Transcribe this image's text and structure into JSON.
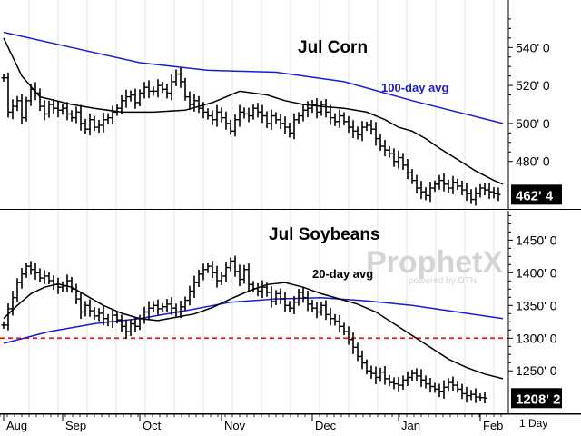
{
  "chart_data": [
    {
      "type": "line",
      "subtype": "ohlc-bar",
      "title": "Jul Corn",
      "ylim": [
        455,
        565
      ],
      "y_ticks": [
        "540' 0",
        "520' 0",
        "500' 0",
        "480' 0"
      ],
      "y_tick_values": [
        540,
        520,
        500,
        480
      ],
      "last_price_label": "462' 4",
      "last_price": 462.5,
      "annotations": [
        {
          "text": "100-day avg",
          "color": "#1b1bd6"
        }
      ],
      "series": [
        {
          "name": "100-day avg",
          "color": "#1b1bd6",
          "x": [
            0,
            15,
            30,
            45,
            60,
            75,
            90,
            105,
            110
          ],
          "values": [
            548,
            540,
            532,
            528,
            527,
            522,
            512,
            503,
            500
          ]
        },
        {
          "name": "",
          "color": "#000000",
          "x": [
            0,
            4,
            8,
            15,
            20,
            26,
            33,
            40,
            46,
            52,
            58,
            62,
            66,
            70,
            75,
            80,
            84,
            87,
            90,
            93,
            96,
            100,
            104,
            108,
            110
          ],
          "values": [
            545,
            525,
            514,
            510,
            508,
            506,
            506,
            507,
            511,
            517,
            515,
            512,
            510,
            509,
            508,
            506,
            502,
            498,
            496,
            492,
            487,
            481,
            475,
            470,
            468
          ]
        },
        {
          "name": "Jul Corn price",
          "type": "ohlc",
          "color": "#000000",
          "x_start": 0,
          "values": [
            524,
            506,
            509,
            512,
            503,
            512,
            518,
            516,
            509,
            505,
            510,
            508,
            507,
            508,
            505,
            503,
            506,
            500,
            497,
            502,
            498,
            499,
            502,
            503,
            506,
            508,
            512,
            514,
            515,
            511,
            516,
            519,
            517,
            517,
            520,
            518,
            516,
            522,
            526,
            522,
            514,
            510,
            512,
            508,
            506,
            504,
            502,
            506,
            503,
            500,
            496,
            502,
            506,
            505,
            504,
            508,
            506,
            504,
            500,
            504,
            502,
            500,
            498,
            495,
            502,
            504,
            507,
            508,
            510,
            506,
            510,
            506,
            503,
            501,
            504,
            501,
            498,
            496,
            494,
            498,
            499,
            497,
            492,
            488,
            486,
            484,
            480,
            482,
            478,
            474,
            470,
            466,
            464,
            462,
            466,
            468,
            470,
            468,
            466,
            469,
            467,
            465,
            463,
            460,
            463,
            466,
            465,
            464,
            463,
            462.5
          ]
        }
      ]
    },
    {
      "type": "line",
      "subtype": "ohlc-bar",
      "title": "Jul Soybeans",
      "ylim": [
        1185,
        1495
      ],
      "y_ticks": [
        "1450' 0",
        "1400' 0",
        "1350' 0",
        "1300' 0",
        "1250' 0"
      ],
      "y_tick_values": [
        1450,
        1400,
        1350,
        1300,
        1250
      ],
      "last_price_label": "1208' 2",
      "last_price": 1208.25,
      "reference_line": {
        "value": 1300,
        "color": "#e21b1b",
        "style": "dashed"
      },
      "annotations": [
        {
          "text": "20-day avg",
          "color": "#000000"
        }
      ],
      "x_labels": [
        "Aug",
        "Sep",
        "Oct",
        "Nov",
        "Dec",
        "Jan",
        "Feb"
      ],
      "x_label_positions": [
        0,
        13,
        30,
        48,
        68,
        87,
        105
      ],
      "period_label": "1 Day",
      "series": [
        {
          "name": "100-day avg",
          "color": "#1b1bd6",
          "x": [
            0,
            10,
            20,
            30,
            40,
            50,
            60,
            70,
            80,
            90,
            100,
            110
          ],
          "values": [
            1292,
            1310,
            1322,
            1330,
            1342,
            1355,
            1360,
            1362,
            1357,
            1350,
            1340,
            1330
          ]
        },
        {
          "name": "20-day avg",
          "color": "#000000",
          "x": [
            0,
            3,
            6,
            9,
            12,
            15,
            18,
            22,
            26,
            30,
            34,
            38,
            42,
            46,
            50,
            54,
            58,
            62,
            66,
            70,
            74,
            78,
            82,
            86,
            90,
            94,
            98,
            102,
            106,
            110
          ],
          "values": [
            1330,
            1350,
            1368,
            1378,
            1383,
            1378,
            1366,
            1350,
            1338,
            1330,
            1327,
            1332,
            1337,
            1347,
            1360,
            1372,
            1382,
            1385,
            1378,
            1368,
            1360,
            1352,
            1340,
            1322,
            1304,
            1286,
            1268,
            1255,
            1245,
            1238
          ]
        },
        {
          "name": "Jul Soybeans price",
          "type": "ohlc",
          "color": "#000000",
          "x_start": 0,
          "values": [
            1320,
            1345,
            1362,
            1385,
            1398,
            1410,
            1405,
            1400,
            1392,
            1395,
            1388,
            1382,
            1378,
            1380,
            1388,
            1375,
            1360,
            1340,
            1350,
            1342,
            1334,
            1338,
            1330,
            1325,
            1335,
            1328,
            1318,
            1310,
            1322,
            1318,
            1330,
            1340,
            1346,
            1350,
            1345,
            1348,
            1352,
            1346,
            1340,
            1348,
            1358,
            1372,
            1385,
            1398,
            1405,
            1410,
            1400,
            1388,
            1395,
            1408,
            1418,
            1402,
            1390,
            1405,
            1382,
            1376,
            1372,
            1378,
            1370,
            1356,
            1368,
            1360,
            1350,
            1346,
            1355,
            1370,
            1362,
            1352,
            1346,
            1340,
            1350,
            1336,
            1330,
            1326,
            1318,
            1310,
            1298,
            1286,
            1272,
            1262,
            1250,
            1246,
            1240,
            1248,
            1238,
            1232,
            1230,
            1228,
            1236,
            1240,
            1246,
            1242,
            1236,
            1230,
            1226,
            1222,
            1218,
            1225,
            1232,
            1228,
            1222,
            1215,
            1212,
            1214,
            1210,
            1209,
            1208.25
          ]
        }
      ]
    }
  ],
  "watermark": {
    "brand": "ProphetX",
    "sub": "powered by DTN"
  }
}
